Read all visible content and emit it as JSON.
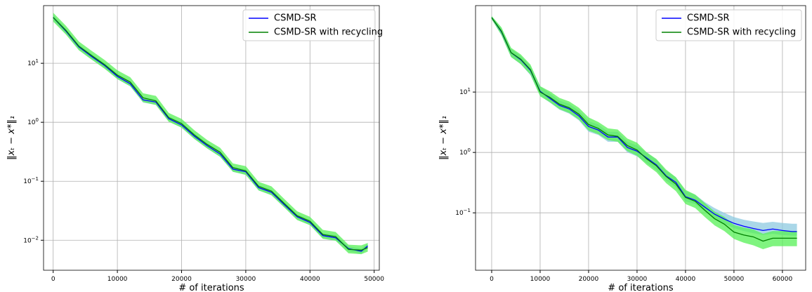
{
  "chart_data": [
    {
      "type": "line",
      "xlabel": "# of iterations",
      "ylabel": "‖xₜ − x*‖₁",
      "log_y": true,
      "grid": true,
      "legend": "upper right",
      "x": [
        0,
        2000,
        4000,
        6000,
        8000,
        10000,
        12000,
        14000,
        16000,
        18000,
        20000,
        22000,
        24000,
        26000,
        28000,
        30000,
        32000,
        34000,
        36000,
        38000,
        40000,
        42000,
        44000,
        46000,
        48000,
        49000
      ],
      "xlim": [
        -1500,
        50800
      ],
      "xticks": [
        0,
        10000,
        20000,
        30000,
        40000,
        50000
      ],
      "ylim": [
        0.0031,
        95
      ],
      "yticks": [
        {
          "value": 0.01,
          "label": "10",
          "exponent": "−2"
        },
        {
          "value": 0.1,
          "label": "10",
          "exponent": "−1"
        },
        {
          "value": 1,
          "label": "10",
          "exponent": "0"
        },
        {
          "value": 10,
          "label": "10",
          "exponent": "1"
        }
      ],
      "series": [
        {
          "name": "CSMD-SR",
          "color": "#0000ff",
          "band_color": "#8ec9e0",
          "values": [
            60,
            35,
            19,
            13,
            9.2,
            6,
            4.5,
            2.4,
            2.2,
            1.15,
            0.9,
            0.58,
            0.4,
            0.29,
            0.16,
            0.145,
            0.078,
            0.065,
            0.04,
            0.025,
            0.02,
            0.012,
            0.011,
            0.0072,
            0.0065,
            0.008
          ],
          "lower": [
            54,
            31.5,
            17.1,
            11.7,
            8.3,
            5.4,
            4.05,
            2.16,
            1.98,
            1.04,
            0.81,
            0.52,
            0.36,
            0.26,
            0.144,
            0.13,
            0.07,
            0.058,
            0.036,
            0.0225,
            0.018,
            0.0108,
            0.0099,
            0.0065,
            0.0059,
            0.0072
          ],
          "upper": [
            66,
            38.5,
            20.9,
            14.3,
            10.1,
            6.6,
            4.95,
            2.64,
            2.42,
            1.27,
            0.99,
            0.64,
            0.44,
            0.32,
            0.176,
            0.16,
            0.086,
            0.072,
            0.044,
            0.0275,
            0.022,
            0.0132,
            0.0121,
            0.0079,
            0.0072,
            0.0088
          ]
        },
        {
          "name": "CSMD-SR with recycling",
          "color": "#008000",
          "band_color": "#55f055",
          "values": [
            60,
            36,
            19.5,
            13.5,
            9.5,
            6.3,
            4.8,
            2.6,
            2.3,
            1.2,
            0.95,
            0.61,
            0.42,
            0.31,
            0.17,
            0.15,
            0.082,
            0.068,
            0.042,
            0.026,
            0.021,
            0.0125,
            0.0115,
            0.007,
            0.0068,
            0.0075
          ],
          "lower": [
            51,
            30.6,
            16.6,
            11.5,
            8.1,
            5.4,
            4.1,
            2.2,
            1.96,
            1.02,
            0.81,
            0.52,
            0.36,
            0.26,
            0.145,
            0.128,
            0.07,
            0.058,
            0.036,
            0.022,
            0.018,
            0.0106,
            0.0098,
            0.006,
            0.0058,
            0.0064
          ],
          "upper": [
            72,
            43,
            23.4,
            16.2,
            11.4,
            7.6,
            5.8,
            3.1,
            2.8,
            1.44,
            1.14,
            0.73,
            0.5,
            0.37,
            0.2,
            0.18,
            0.098,
            0.082,
            0.05,
            0.031,
            0.025,
            0.015,
            0.0138,
            0.0084,
            0.0082,
            0.009
          ]
        }
      ]
    },
    {
      "type": "line",
      "xlabel": "# of iterations",
      "ylabel": "‖xₜ − x*‖₁",
      "log_y": true,
      "grid": true,
      "legend": "upper right",
      "x": [
        0,
        2000,
        4000,
        6000,
        8000,
        10000,
        12000,
        14000,
        16000,
        18000,
        20000,
        22000,
        24000,
        26000,
        28000,
        30000,
        32000,
        34000,
        36000,
        38000,
        40000,
        42000,
        44000,
        46000,
        48000,
        50000,
        52000,
        54000,
        56000,
        58000,
        60000,
        62000,
        63000
      ],
      "xlim": [
        -3330,
        64800
      ],
      "xticks": [
        0,
        10000,
        20000,
        30000,
        40000,
        50000,
        60000
      ],
      "ylim": [
        0.0112,
        270
      ],
      "yticks": [
        {
          "value": 0.1,
          "label": "10",
          "exponent": "−1"
        },
        {
          "value": 1,
          "label": "10",
          "exponent": "0"
        },
        {
          "value": 10,
          "label": "10",
          "exponent": "1"
        }
      ],
      "series": [
        {
          "name": "CSMD-SR",
          "color": "#0000ff",
          "band_color": "#8ec9e0",
          "values": [
            171,
            100,
            44.8,
            34.3,
            22.9,
            10.3,
            7.86,
            6.0,
            5.26,
            4.03,
            2.69,
            2.35,
            1.8,
            1.8,
            1.21,
            1.05,
            0.81,
            0.62,
            0.41,
            0.32,
            0.185,
            0.162,
            0.124,
            0.095,
            0.079,
            0.067,
            0.06,
            0.055,
            0.051,
            0.054,
            0.051,
            0.049,
            0.049
          ],
          "lower": [
            160,
            88,
            38,
            29,
            19,
            8.7,
            6.7,
            5.1,
            4.4,
            3.4,
            2.2,
            1.95,
            1.5,
            1.5,
            1.0,
            0.86,
            0.66,
            0.51,
            0.34,
            0.27,
            0.155,
            0.14,
            0.105,
            0.08,
            0.066,
            0.056,
            0.05,
            0.046,
            0.043,
            0.045,
            0.043,
            0.042,
            0.042
          ],
          "upper": [
            180,
            115,
            52,
            40,
            27,
            12.5,
            9.5,
            7.2,
            6.4,
            4.9,
            3.3,
            2.9,
            2.2,
            2.2,
            1.5,
            1.3,
            1.0,
            0.76,
            0.5,
            0.39,
            0.23,
            0.2,
            0.15,
            0.12,
            0.1,
            0.085,
            0.077,
            0.072,
            0.068,
            0.071,
            0.068,
            0.066,
            0.066
          ]
        },
        {
          "name": "CSMD-SR with recycling",
          "color": "#008000",
          "band_color": "#55f055",
          "values": [
            171,
            102,
            45,
            35,
            23.5,
            10,
            8.2,
            6.3,
            5.5,
            4.3,
            2.9,
            2.5,
            1.95,
            1.85,
            1.3,
            1.1,
            0.78,
            0.6,
            0.4,
            0.3,
            0.18,
            0.155,
            0.11,
            0.08,
            0.065,
            0.048,
            0.043,
            0.04,
            0.034,
            0.038,
            0.038,
            0.038,
            0.038
          ],
          "lower": [
            160,
            88,
            38,
            29,
            19.5,
            8.5,
            6.8,
            5.2,
            4.5,
            3.5,
            2.3,
            2.0,
            1.6,
            1.5,
            1.05,
            0.88,
            0.62,
            0.47,
            0.31,
            0.23,
            0.14,
            0.12,
            0.085,
            0.062,
            0.05,
            0.037,
            0.032,
            0.029,
            0.025,
            0.028,
            0.028,
            0.028,
            0.028
          ],
          "upper": [
            182,
            118,
            54,
            42,
            28.5,
            12.5,
            10.3,
            8.0,
            7.0,
            5.5,
            3.8,
            3.2,
            2.5,
            2.4,
            1.7,
            1.45,
            1.0,
            0.78,
            0.52,
            0.39,
            0.24,
            0.2,
            0.145,
            0.105,
            0.086,
            0.063,
            0.057,
            0.053,
            0.045,
            0.05,
            0.05,
            0.05,
            0.05
          ]
        }
      ]
    }
  ]
}
